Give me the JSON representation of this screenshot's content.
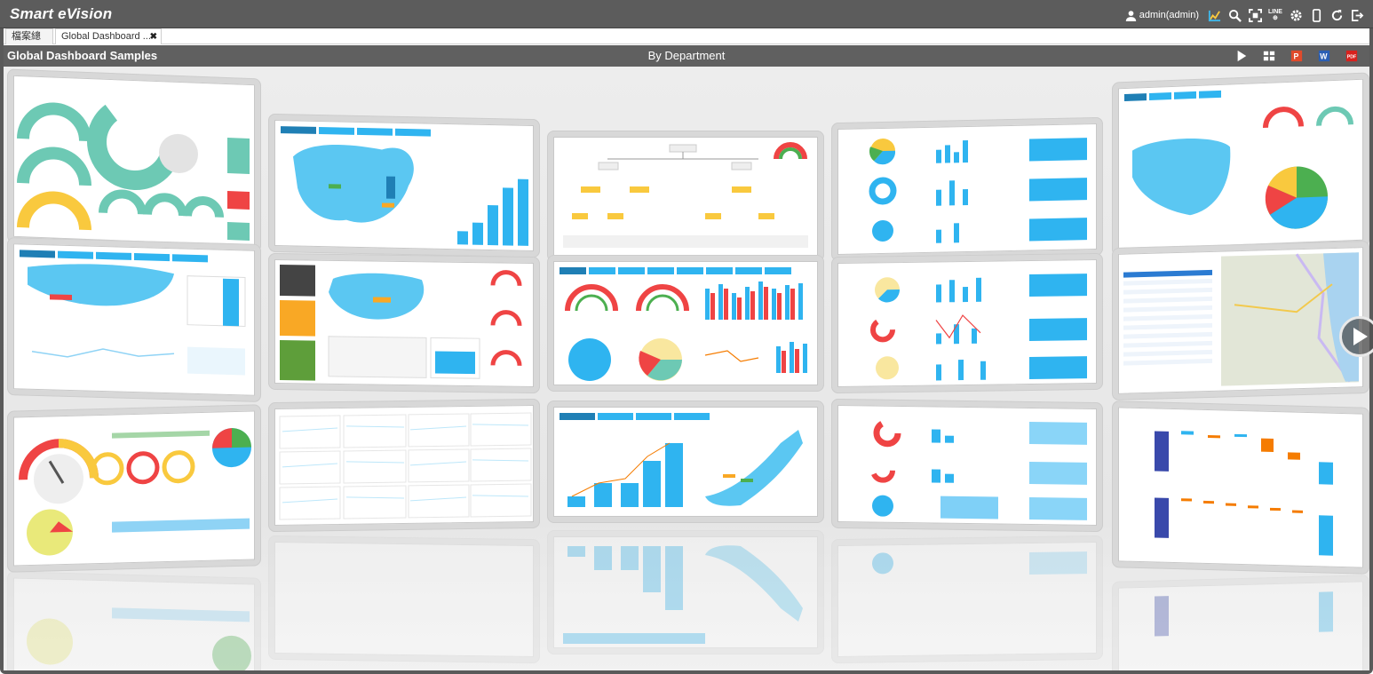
{
  "app": {
    "brand": "Smart eVision"
  },
  "toolbar": {
    "user_label": "admin(admin)",
    "line_label": "LINE",
    "icons": [
      "user-icon",
      "chart-icon",
      "search-icon",
      "fullscreen-icon",
      "line-icon",
      "gear-icon",
      "mobile-icon",
      "refresh-icon",
      "logout-icon"
    ]
  },
  "tabs": [
    {
      "label": "檔案總管"
    },
    {
      "label": "Global Dashboard ..."
    }
  ],
  "page": {
    "title": "Global Dashboard Samples",
    "center_label": "By Department",
    "actions": [
      "play-icon",
      "grid-icon",
      "ppt-icon",
      "word-icon",
      "pdf-icon"
    ]
  },
  "colors": {
    "topbar": "#5c5c5c",
    "accent_blue": "#2fb4f0",
    "dark_blue": "#1f7fb5",
    "teal": "#6dc9b4",
    "red": "#ef4444",
    "yellow": "#f9c93e",
    "orange": "#f57c00"
  },
  "gallery": {
    "thumbnails": [
      {
        "name": "kpi-gauges"
      },
      {
        "name": "china-map-bar"
      },
      {
        "name": "org-tree"
      },
      {
        "name": "pies-bars"
      },
      {
        "name": "usa-map-pie"
      },
      {
        "name": "world-map-line"
      },
      {
        "name": "china-table"
      },
      {
        "name": "gauges-bars"
      },
      {
        "name": "pie-bars-2"
      },
      {
        "name": "city-map-list"
      },
      {
        "name": "speedometer-pie"
      },
      {
        "name": "line-grid"
      },
      {
        "name": "japan-map-bar"
      },
      {
        "name": "donuts-areas"
      },
      {
        "name": "cashflow-waterfall"
      }
    ]
  }
}
